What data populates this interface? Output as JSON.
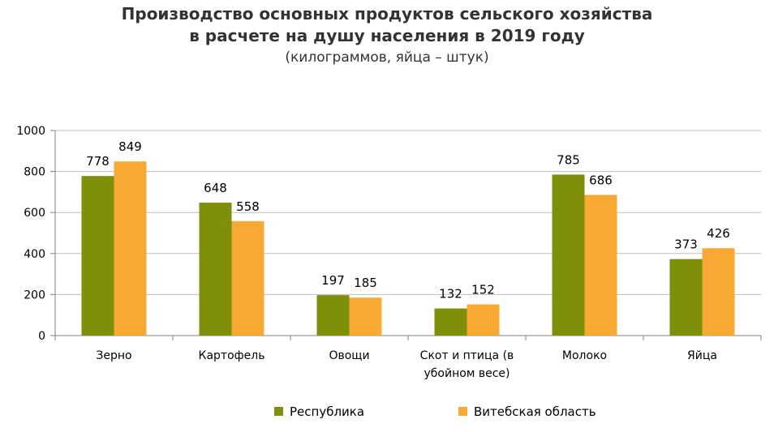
{
  "chart_data": {
    "type": "bar",
    "title": [
      "Производство основных продуктов сельского хозяйства",
      "в расчете на душу населения в 2019 году"
    ],
    "subtitle": "(килограммов, яйца – штук)",
    "categories": [
      [
        "Зерно"
      ],
      [
        "Картофель"
      ],
      [
        "Овощи"
      ],
      [
        "Скот и птица (в",
        "убойном весе)"
      ],
      [
        "Молоко"
      ],
      [
        "Яйца"
      ]
    ],
    "series": [
      {
        "name": "Республика",
        "color": "#7f8f0a",
        "values": [
          778,
          648,
          197,
          132,
          785,
          373
        ]
      },
      {
        "name": "Витебская область",
        "color": "#f7a934",
        "values": [
          849,
          558,
          185,
          152,
          686,
          426
        ]
      }
    ],
    "ylim": [
      0,
      1000
    ],
    "yticks": [
      0,
      200,
      400,
      600,
      800,
      1000
    ],
    "grid": true,
    "legend_position": "bottom"
  }
}
